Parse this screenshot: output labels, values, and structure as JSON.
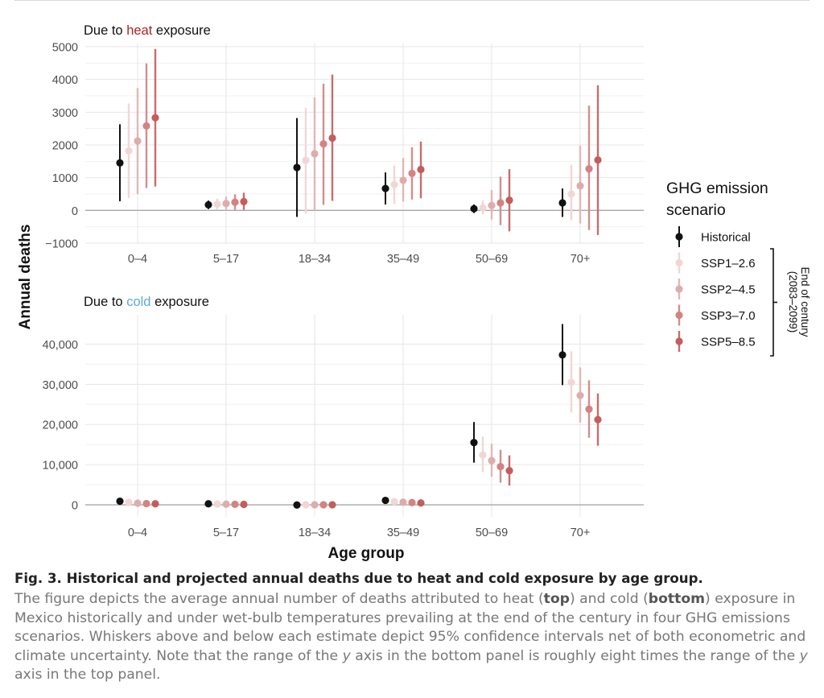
{
  "chart_data": [
    {
      "type": "scatter",
      "panel": "top",
      "title_parts": [
        "Due to ",
        "heat",
        " exposure"
      ],
      "title_accent_color": "#b22222",
      "categories": [
        "0–4",
        "5–17",
        "18–34",
        "35–49",
        "50–69",
        "70+"
      ],
      "ylim": [
        -1000,
        5000
      ],
      "yticks": [
        -1000,
        0,
        1000,
        2000,
        3000,
        4000,
        5000
      ],
      "ytick_labels": [
        "−1000",
        "0",
        "1000",
        "2000",
        "3000",
        "4000",
        "5000"
      ],
      "series": [
        {
          "name": "Historical",
          "values": [
            1450,
            170,
            1310,
            670,
            50,
            230
          ],
          "lower": [
            280,
            40,
            -200,
            180,
            -80,
            -200
          ],
          "upper": [
            2630,
            300,
            2820,
            1160,
            180,
            670
          ]
        },
        {
          "name": "SSP1–2.6",
          "values": [
            1820,
            190,
            1530,
            790,
            80,
            500
          ],
          "lower": [
            380,
            30,
            -100,
            200,
            -120,
            -300
          ],
          "upper": [
            3270,
            360,
            3130,
            1370,
            300,
            1390
          ]
        },
        {
          "name": "SSP2–4.5",
          "values": [
            2120,
            210,
            1730,
            920,
            150,
            750
          ],
          "lower": [
            500,
            30,
            0,
            270,
            -280,
            -400
          ],
          "upper": [
            3740,
            420,
            3450,
            1600,
            620,
            1980
          ]
        },
        {
          "name": "SSP3–7.0",
          "values": [
            2580,
            250,
            2030,
            1130,
            230,
            1270
          ],
          "lower": [
            680,
            20,
            170,
            330,
            -450,
            -600
          ],
          "upper": [
            4490,
            490,
            3870,
            1930,
            1030,
            3200
          ]
        },
        {
          "name": "SSP5–8.5",
          "values": [
            2830,
            270,
            2210,
            1250,
            310,
            1540
          ],
          "lower": [
            730,
            20,
            290,
            370,
            -640,
            -750
          ],
          "upper": [
            4930,
            540,
            4150,
            2100,
            1260,
            3820
          ]
        }
      ]
    },
    {
      "type": "scatter",
      "panel": "bottom",
      "title_parts": [
        "Due to ",
        "cold",
        " exposure"
      ],
      "title_accent_color": "#5aa9e0",
      "categories": [
        "0–4",
        "5–17",
        "18–34",
        "35–49",
        "50–69",
        "70+"
      ],
      "ylim": [
        -3000,
        46500
      ],
      "yticks": [
        0,
        10000,
        20000,
        30000,
        40000
      ],
      "ytick_labels": [
        "0",
        "10,000",
        "20,000",
        "30,000",
        "40,000"
      ],
      "series": [
        {
          "name": "Historical",
          "values": [
            900,
            250,
            -50,
            1100,
            15500,
            37300
          ],
          "lower": [
            500,
            100,
            -200,
            700,
            10500,
            29800
          ],
          "upper": [
            1300,
            400,
            100,
            1500,
            20600,
            45000
          ]
        },
        {
          "name": "SSP1–2.6",
          "values": [
            600,
            200,
            0,
            800,
            12400,
            30500
          ],
          "lower": [
            200,
            50,
            -100,
            400,
            8200,
            23000
          ],
          "upper": [
            1000,
            350,
            100,
            1200,
            17000,
            38200
          ]
        },
        {
          "name": "SSP2–4.5",
          "values": [
            400,
            150,
            0,
            650,
            11000,
            27200
          ],
          "lower": [
            100,
            50,
            -100,
            300,
            7000,
            20500
          ],
          "upper": [
            700,
            300,
            100,
            1000,
            15200,
            34200
          ]
        },
        {
          "name": "SSP3–7.0",
          "values": [
            300,
            120,
            0,
            550,
            9500,
            23800
          ],
          "lower": [
            50,
            20,
            -100,
            250,
            5500,
            16700
          ],
          "upper": [
            550,
            250,
            100,
            900,
            13700,
            31000
          ]
        },
        {
          "name": "SSP5–8.5",
          "values": [
            250,
            100,
            0,
            450,
            8500,
            21200
          ],
          "lower": [
            30,
            20,
            -100,
            200,
            4800,
            14700
          ],
          "upper": [
            500,
            200,
            100,
            800,
            12300,
            27700
          ]
        }
      ]
    }
  ],
  "ylabel": "Annual deaths",
  "xlabel": "Age group",
  "legend": {
    "title_lines": [
      "GHG emission",
      "scenario"
    ],
    "items": [
      {
        "label": "Historical",
        "color": "#111111",
        "line_color": "#111111"
      },
      {
        "label": "SSP1–2.6",
        "color": "#f2d6d6",
        "line_color": "#f2d6d6"
      },
      {
        "label": "SSP2–4.5",
        "color": "#ddadad",
        "line_color": "#e3b7b7"
      },
      {
        "label": "SSP3–7.0",
        "color": "#d58282",
        "line_color": "#d28e8e"
      },
      {
        "label": "SSP5–8.5",
        "color": "#c45d5d",
        "line_color": "#c86c6c"
      }
    ],
    "bracket_lines": [
      "End of century",
      "(2083–2099)"
    ]
  },
  "caption": {
    "figure_label": "Fig. 3.",
    "heading": "Historical and projected annual deaths due to heat and cold exposure by age group.",
    "body_1": "The figure depicts the average annual number of deaths attributed to heat (",
    "top_word": "top",
    "body_2": ") and cold (",
    "bottom_word": "bottom",
    "body_3": ") exposure in Mexico historically and under wet-bulb temperatures prevailing at the end of the century in four GHG emissions scenarios. Whiskers above and below each estimate depict 95% confidence intervals net of both econometric and climate uncertainty. Note that the range of the ",
    "y_word_1": "y",
    "body_4": " axis in the bottom panel is roughly eight times the range of the ",
    "y_word_2": "y",
    "body_5": " axis in the top panel."
  }
}
